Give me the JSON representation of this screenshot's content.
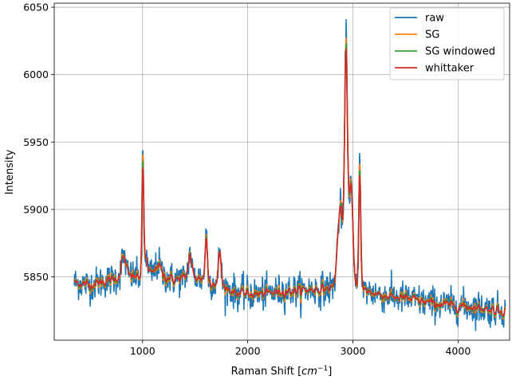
{
  "chart_data": {
    "type": "line",
    "title": "",
    "xlabel_base": "Raman Shift [",
    "xlabel_math": "cm",
    "xlabel_exp": "−1",
    "xlabel_close": "]",
    "ylabel": "Intensity",
    "xlim": [
      160,
      4490
    ],
    "ylim": [
      5803,
      6053
    ],
    "xticks": [
      1000,
      2000,
      3000,
      4000
    ],
    "xtick_labels": [
      "1000",
      "2000",
      "3000",
      "4000"
    ],
    "yticks": [
      5850,
      5900,
      5950,
      6000,
      6050
    ],
    "ytick_labels": [
      "5850",
      "5900",
      "5950",
      "6000",
      "6050"
    ],
    "grid": true,
    "legend_position": "top-right",
    "x_range": [
      350,
      4450
    ],
    "baseline": [
      [
        350,
        5846
      ],
      [
        500,
        5844
      ],
      [
        700,
        5848
      ],
      [
        850,
        5851
      ],
      [
        950,
        5850
      ],
      [
        1100,
        5853
      ],
      [
        1300,
        5848
      ],
      [
        1500,
        5850
      ],
      [
        1700,
        5845
      ],
      [
        1900,
        5838
      ],
      [
        2100,
        5837
      ],
      [
        2300,
        5839
      ],
      [
        2500,
        5840
      ],
      [
        2700,
        5841
      ],
      [
        2850,
        5842
      ],
      [
        3100,
        5840
      ],
      [
        3300,
        5836
      ],
      [
        3500,
        5834
      ],
      [
        3700,
        5831
      ],
      [
        3900,
        5829
      ],
      [
        4100,
        5828
      ],
      [
        4300,
        5826
      ],
      [
        4450,
        5825
      ]
    ],
    "peaks": [
      {
        "center": 1003,
        "width": 7,
        "height": 95
      },
      {
        "center": 1030,
        "width": 12,
        "height": 15
      },
      {
        "center": 820,
        "width": 20,
        "height": 15
      },
      {
        "center": 1150,
        "width": 20,
        "height": 8
      },
      {
        "center": 1450,
        "width": 15,
        "height": 18
      },
      {
        "center": 1605,
        "width": 10,
        "height": 35
      },
      {
        "center": 1735,
        "width": 11,
        "height": 28
      },
      {
        "center": 2880,
        "width": 25,
        "height": 60
      },
      {
        "center": 2935,
        "width": 13,
        "height": 180
      },
      {
        "center": 2980,
        "width": 18,
        "height": 80
      },
      {
        "center": 3065,
        "width": 9,
        "height": 100
      }
    ],
    "series": [
      {
        "name": "raw",
        "color": "#1f77b4",
        "noise": 6.0,
        "smooth": 0
      },
      {
        "name": "SG",
        "color": "#ff7f0e",
        "noise": 4.0,
        "smooth": 1
      },
      {
        "name": "SG windowed",
        "color": "#2ca02c",
        "noise": 3.5,
        "smooth": 2
      },
      {
        "name": "whittaker",
        "color": "#d62728",
        "noise": 3.0,
        "smooth": 3
      }
    ]
  }
}
